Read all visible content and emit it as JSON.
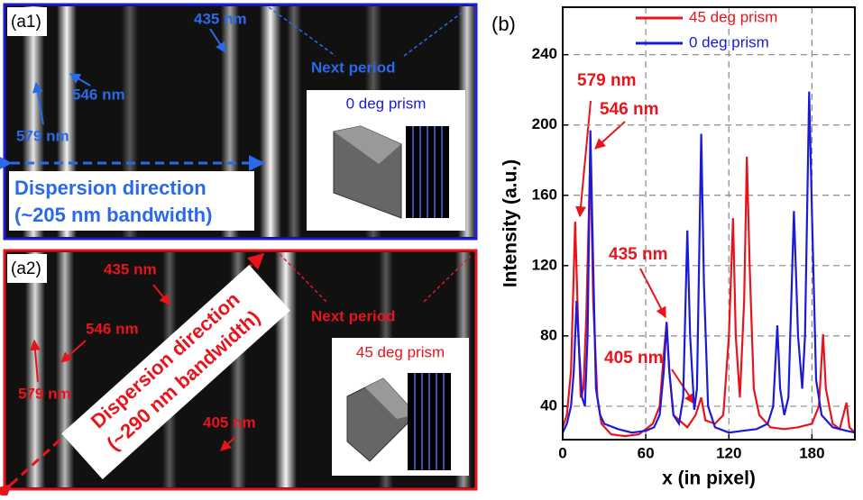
{
  "panels": {
    "a1": {
      "label": "(a1)",
      "annotations": [
        "435 nm",
        "546 nm",
        "579 nm",
        "Next period"
      ],
      "direction": [
        "Dispersion direction",
        "(~205 nm bandwidth)"
      ],
      "inset": "0 deg prism"
    },
    "a2": {
      "label": "(a2)",
      "annotations": [
        "435 nm",
        "546 nm",
        "579 nm",
        "405 nm",
        "Next period"
      ],
      "direction": [
        "Dispersion direction",
        "(~290 nm bandwidth)"
      ],
      "inset": "45 deg prism"
    }
  },
  "chart_data": {
    "type": "line",
    "panel_label": "(b)",
    "xlabel": "x (in pixel)",
    "ylabel": "Intensity (a.u.)",
    "xlim": [
      0,
      211
    ],
    "ylim": [
      21,
      267
    ],
    "xticks": [
      0,
      60,
      120,
      180
    ],
    "yticks": [
      40,
      80,
      120,
      160,
      200,
      240
    ],
    "grid": true,
    "legend": "top",
    "annotations": [
      "579 nm",
      "546 nm",
      "435 nm",
      "405 nm"
    ],
    "series": [
      {
        "name": "45 deg prism",
        "color": "#e8141c",
        "x": [
          0,
          3,
          6,
          9,
          11,
          13,
          15,
          17,
          20,
          22,
          25,
          28,
          35,
          45,
          55,
          65,
          70,
          73,
          75,
          77,
          80,
          90,
          96,
          100,
          103,
          110,
          116,
          120,
          123,
          125,
          128,
          131,
          133,
          135,
          138,
          142,
          150,
          160,
          170,
          180,
          185,
          188,
          190,
          195,
          200,
          205,
          207,
          211
        ],
        "values": [
          28,
          35,
          60,
          145,
          90,
          45,
          50,
          90,
          185,
          100,
          45,
          30,
          24,
          23,
          24,
          30,
          40,
          70,
          87,
          60,
          35,
          28,
          35,
          45,
          32,
          30,
          35,
          80,
          147,
          80,
          45,
          100,
          182,
          120,
          50,
          35,
          28,
          27,
          28,
          30,
          40,
          81,
          50,
          30,
          27,
          42,
          28,
          25
        ]
      },
      {
        "name": "0 deg prism",
        "color": "#1a1ad8",
        "x": [
          0,
          3,
          6,
          8,
          10,
          12,
          14,
          16,
          18,
          20,
          22,
          24,
          27,
          30,
          40,
          50,
          60,
          66,
          70,
          73,
          75,
          77,
          80,
          84,
          87,
          90,
          92,
          95,
          97,
          100,
          102,
          105,
          110,
          120,
          130,
          140,
          148,
          152,
          155,
          157,
          160,
          163,
          167,
          170,
          173,
          175,
          178,
          180,
          183,
          187,
          195,
          205,
          211
        ],
        "values": [
          25,
          30,
          40,
          60,
          100,
          70,
          45,
          40,
          80,
          197,
          120,
          50,
          35,
          30,
          27,
          25,
          26,
          28,
          35,
          60,
          88,
          60,
          35,
          30,
          45,
          140,
          80,
          38,
          50,
          195,
          110,
          40,
          28,
          25,
          26,
          27,
          30,
          40,
          86,
          50,
          35,
          45,
          151,
          80,
          50,
          80,
          219,
          150,
          55,
          35,
          28,
          26,
          25
        ]
      }
    ]
  }
}
